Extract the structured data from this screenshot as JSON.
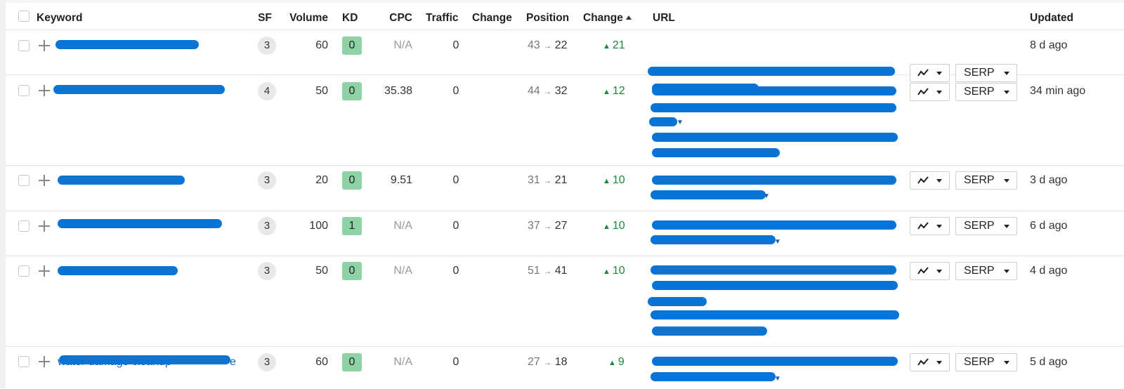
{
  "header": {
    "keyword": "Keyword",
    "sf": "SF",
    "volume": "Volume",
    "kd": "KD",
    "cpc": "CPC",
    "traffic": "Traffic",
    "change": "Change",
    "position": "Position",
    "change_sorted": "Change",
    "url": "URL",
    "updated": "Updated"
  },
  "buttons": {
    "serp": "SERP"
  },
  "icons": {
    "chart": "trend-line-icon",
    "add": "plus-icon",
    "dropdown": "caret-down-icon"
  },
  "colors": {
    "kd_green": "#8fd2a6",
    "change_up": "#1a8a3a",
    "redaction": "#0a74d6"
  },
  "rows": [
    {
      "keyword_visible": "",
      "sf": "3",
      "volume": "60",
      "kd": "0",
      "cpc": "N/A",
      "traffic": "0",
      "pos_prev": "43",
      "pos_arrow": "→",
      "pos_cur": "22",
      "change": "21",
      "updated": "8 d ago"
    },
    {
      "keyword_visible": "",
      "sf": "4",
      "volume": "50",
      "kd": "0",
      "cpc": "35.38",
      "traffic": "0",
      "pos_prev": "44",
      "pos_arrow": "→",
      "pos_cur": "32",
      "change": "12",
      "updated": "34 min ago"
    },
    {
      "keyword_visible": "",
      "sf": "3",
      "volume": "20",
      "kd": "0",
      "cpc": "9.51",
      "traffic": "0",
      "pos_prev": "31",
      "pos_arrow": "→",
      "pos_cur": "21",
      "change": "10",
      "updated": "3 d ago"
    },
    {
      "keyword_visible": "",
      "sf": "3",
      "volume": "100",
      "kd": "1",
      "cpc": "N/A",
      "traffic": "0",
      "pos_prev": "37",
      "pos_arrow": "→",
      "pos_cur": "27",
      "change": "10",
      "updated": "6 d ago"
    },
    {
      "keyword_visible": "",
      "sf": "3",
      "volume": "50",
      "kd": "0",
      "cpc": "N/A",
      "traffic": "0",
      "pos_prev": "51",
      "pos_arrow": "→",
      "pos_cur": "41",
      "change": "10",
      "updated": "4 d ago"
    },
    {
      "keyword_visible": "water damage cleanup",
      "keyword_suffix": "e",
      "sf": "3",
      "volume": "60",
      "kd": "0",
      "cpc": "N/A",
      "traffic": "0",
      "pos_prev": "27",
      "pos_arrow": "→",
      "pos_cur": "18",
      "change": "9",
      "updated": "5 d ago"
    }
  ]
}
